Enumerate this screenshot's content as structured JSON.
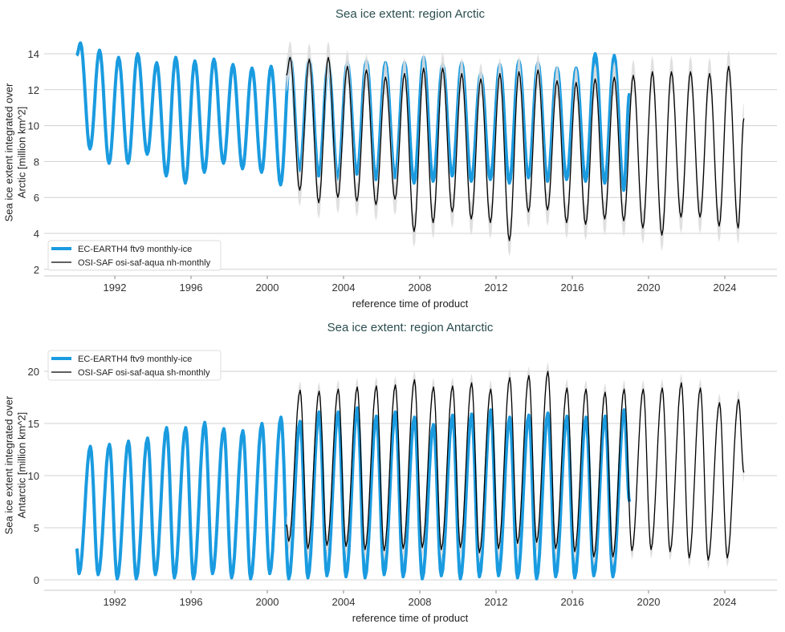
{
  "chart_data": [
    {
      "type": "line",
      "title": "Sea ice extent: region Arctic",
      "xlabel": "reference time of product",
      "ylabel": [
        "Sea ice extent integrated over",
        "Arctic [million km^2]"
      ],
      "xlim": [
        1989.5,
        2025.5
      ],
      "ylim": [
        1.6,
        15.2
      ],
      "xticks": [
        "1992",
        "1996",
        "2000",
        "2004",
        "2008",
        "2012",
        "2016",
        "2020",
        "2024"
      ],
      "yticks": [
        "2",
        "4",
        "6",
        "8",
        "10",
        "12",
        "14"
      ],
      "grid": "horizontal",
      "legend": "bottom-left",
      "seasonal_peak_month": "March",
      "seasonal_low_month": "September",
      "series": [
        {
          "name": "EC-EARTH4 ftv9 monthly-ice",
          "color": "#1a9be0",
          "years": [
            1990,
            1991,
            1992,
            1993,
            1994,
            1995,
            1996,
            1997,
            1998,
            1999,
            2000,
            2001,
            2002,
            2003,
            2004,
            2005,
            2006,
            2007,
            2008,
            2009,
            2010,
            2011,
            2012,
            2013,
            2014,
            2015,
            2016,
            2017,
            2018
          ],
          "annual_max": [
            14.6,
            14.2,
            13.8,
            14.0,
            13.5,
            13.8,
            13.6,
            13.7,
            13.4,
            13.2,
            13.3,
            13.8,
            13.7,
            13.5,
            13.5,
            13.6,
            13.5,
            13.5,
            13.8,
            13.4,
            13.5,
            12.9,
            13.4,
            13.6,
            13.5,
            13.2,
            13.2,
            14.0,
            13.9
          ],
          "annual_min": [
            8.7,
            7.9,
            7.9,
            8.4,
            7.2,
            6.8,
            7.4,
            7.9,
            7.6,
            7.4,
            6.7,
            7.5,
            7.2,
            7.0,
            7.3,
            7.0,
            7.1,
            6.8,
            6.9,
            7.2,
            6.9,
            7.0,
            6.8,
            7.1,
            6.9,
            7.0,
            6.9,
            6.8,
            6.4
          ],
          "start": [
            1990.0,
            13.9
          ],
          "end": [
            2019.0,
            11.8
          ]
        },
        {
          "name": "OSI-SAF osi-saf-aqua nh-monthly",
          "color": "#000000",
          "band_color": "#dddddd",
          "years": [
            2001,
            2002,
            2003,
            2004,
            2005,
            2006,
            2007,
            2008,
            2009,
            2010,
            2011,
            2012,
            2013,
            2014,
            2015,
            2016,
            2017,
            2018,
            2019,
            2020,
            2021,
            2022,
            2023,
            2024
          ],
          "annual_max": [
            13.8,
            13.7,
            13.8,
            13.3,
            13.1,
            12.7,
            12.9,
            13.2,
            13.2,
            12.9,
            12.6,
            12.9,
            13.0,
            13.1,
            12.5,
            12.4,
            12.6,
            12.7,
            12.8,
            13.0,
            13.0,
            13.0,
            12.9,
            13.3
          ],
          "annual_min": [
            6.4,
            5.7,
            6.0,
            5.8,
            5.6,
            5.9,
            4.1,
            4.6,
            5.2,
            4.8,
            4.6,
            3.6,
            5.2,
            5.3,
            4.6,
            4.5,
            4.8,
            4.7,
            4.3,
            3.9,
            4.9,
            4.9,
            4.4,
            4.3
          ],
          "start": [
            2001.0,
            12.8
          ],
          "end": [
            2025.0,
            10.4
          ]
        }
      ]
    },
    {
      "type": "line",
      "title": "Sea ice extent: region Antarctic",
      "xlabel": "reference time of product",
      "ylabel": [
        "Sea ice extent integrated over",
        "Antarctic [million km^2]"
      ],
      "xlim": [
        1989.5,
        2025.5
      ],
      "ylim": [
        -1,
        22
      ],
      "xticks": [
        "1992",
        "1996",
        "2000",
        "2004",
        "2008",
        "2012",
        "2016",
        "2020",
        "2024"
      ],
      "yticks": [
        "0",
        "5",
        "10",
        "15",
        "20"
      ],
      "grid": "horizontal",
      "legend": "top-left",
      "seasonal_peak_month": "September",
      "seasonal_low_month": "February",
      "series": [
        {
          "name": "EC-EARTH4 ftv9 monthly-ice",
          "color": "#1a9be0",
          "years": [
            1990,
            1991,
            1992,
            1993,
            1994,
            1995,
            1996,
            1997,
            1998,
            1999,
            2000,
            2001,
            2002,
            2003,
            2004,
            2005,
            2006,
            2007,
            2008,
            2009,
            2010,
            2011,
            2012,
            2013,
            2014,
            2015,
            2016,
            2017,
            2018
          ],
          "annual_min": [
            0.6,
            0.5,
            0.1,
            0.1,
            0.5,
            0.2,
            0.1,
            0.6,
            0.2,
            0.1,
            0.6,
            0.1,
            0.2,
            0.4,
            0.3,
            0.2,
            0.5,
            0.3,
            0.1,
            0.4,
            0.1,
            0.3,
            0.4,
            0.2,
            0.1,
            0.3,
            0.2,
            0.4,
            0.3
          ],
          "annual_max": [
            12.8,
            13.0,
            13.3,
            13.6,
            14.6,
            14.6,
            15.1,
            14.5,
            14.3,
            15.0,
            15.6,
            15.2,
            16.1,
            16.1,
            16.5,
            15.7,
            16.1,
            15.6,
            14.9,
            15.8,
            15.9,
            16.3,
            15.6,
            15.8,
            16.0,
            15.7,
            15.6,
            15.7,
            16.3
          ],
          "start": [
            1990.0,
            3.0
          ],
          "end": [
            2019.0,
            7.5
          ]
        },
        {
          "name": "OSI-SAF osi-saf-aqua sh-monthly",
          "color": "#000000",
          "band_color": "#dddddd",
          "years": [
            2001,
            2002,
            2003,
            2004,
            2005,
            2006,
            2007,
            2008,
            2009,
            2010,
            2011,
            2012,
            2013,
            2014,
            2015,
            2016,
            2017,
            2018,
            2019,
            2020,
            2021,
            2022,
            2023,
            2024
          ],
          "annual_min": [
            3.7,
            3.0,
            3.3,
            3.2,
            2.9,
            2.8,
            3.0,
            3.1,
            2.9,
            3.1,
            2.6,
            3.0,
            3.5,
            3.6,
            3.0,
            2.7,
            2.2,
            2.2,
            2.8,
            2.9,
            2.7,
            2.1,
            1.9,
            2.1
          ],
          "annual_max": [
            18.2,
            18.1,
            18.3,
            18.5,
            18.6,
            18.7,
            19.2,
            18.5,
            18.6,
            18.9,
            18.3,
            19.4,
            19.6,
            20.0,
            18.4,
            18.3,
            18.0,
            18.3,
            18.3,
            18.4,
            18.9,
            18.4,
            17.0,
            17.3
          ],
          "start": [
            2001.0,
            5.3
          ],
          "end": [
            2025.0,
            10.3
          ]
        }
      ]
    }
  ]
}
